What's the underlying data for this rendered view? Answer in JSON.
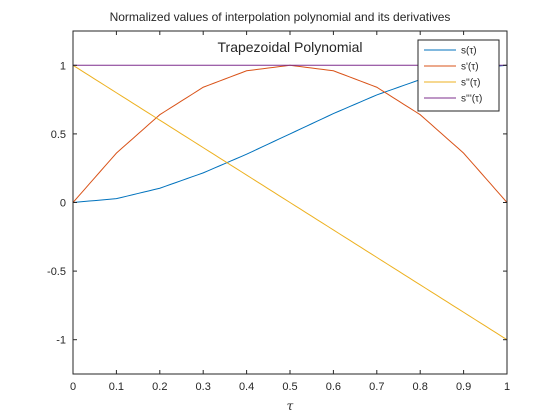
{
  "chart_data": {
    "type": "line",
    "title": "Normalized values of interpolation polynomial and its derivatives",
    "annotation": "Trapezoidal Polynomial",
    "xlabel": "τ",
    "ylabel": "",
    "xlim": [
      0,
      1
    ],
    "ylim": [
      -1.25,
      1.25
    ],
    "x_ticks": [
      0,
      0.1,
      0.2,
      0.3,
      0.4,
      0.5,
      0.6,
      0.7,
      0.8,
      0.9,
      1
    ],
    "x_tick_labels": [
      "0",
      "0.1",
      "0.2",
      "0.3",
      "0.4",
      "0.5",
      "0.6",
      "0.7",
      "0.8",
      "0.9",
      "1"
    ],
    "y_ticks": [
      -1,
      -0.5,
      0,
      0.5,
      1
    ],
    "y_tick_labels": [
      "-1",
      "-0.5",
      "0",
      "0.5",
      "1"
    ],
    "grid": false,
    "legend_position": "top-right",
    "x": [
      0,
      0.1,
      0.2,
      0.3,
      0.4,
      0.5,
      0.6,
      0.7,
      0.8,
      0.9,
      1
    ],
    "series": [
      {
        "name": "s(τ)",
        "color": "#0072BD",
        "values": [
          0,
          0.028,
          0.104,
          0.216,
          0.352,
          0.5,
          0.648,
          0.784,
          0.896,
          0.972,
          1
        ]
      },
      {
        "name": "s'(τ)",
        "color": "#D95319",
        "values": [
          0,
          0.36,
          0.64,
          0.84,
          0.96,
          1,
          0.96,
          0.84,
          0.64,
          0.36,
          0
        ]
      },
      {
        "name": "s''(τ)",
        "color": "#EDB120",
        "values": [
          1,
          0.8,
          0.6,
          0.4,
          0.2,
          0,
          -0.2,
          -0.4,
          -0.6,
          -0.8,
          -1
        ]
      },
      {
        "name": "s'''(τ)",
        "color": "#7E2F8E",
        "values": [
          1,
          1,
          1,
          1,
          1,
          1,
          1,
          1,
          1,
          1,
          1
        ]
      }
    ]
  }
}
